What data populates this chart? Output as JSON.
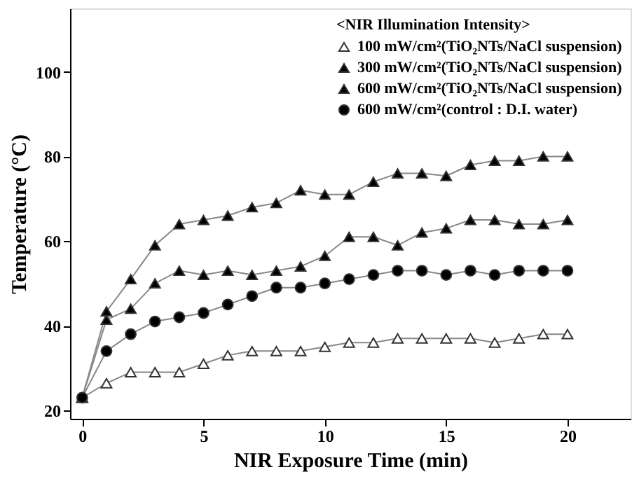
{
  "chart_data": {
    "type": "line",
    "xlabel": "NIR Exposure Time (min)",
    "ylabel": "Temperature (°C)",
    "legend_title": "<NIR Illumination Intensity>",
    "x": [
      0,
      1,
      2,
      3,
      4,
      5,
      6,
      7,
      8,
      9,
      10,
      11,
      12,
      13,
      14,
      15,
      16,
      17,
      18,
      19,
      20
    ],
    "xlim": [
      -0.5,
      22.6
    ],
    "xticks": [
      0,
      5,
      10,
      15,
      20
    ],
    "ylim": [
      18,
      115
    ],
    "yticks": [
      20,
      40,
      60,
      80,
      100
    ],
    "grid": false,
    "legend": "top right",
    "marker": "triangle",
    "series": [
      {
        "name": "100 mW/cm²(TiO₂NTs/NaCl suspension)",
        "color": "#ffffff",
        "values": [
          23,
          26.4,
          29,
          29,
          29,
          31,
          33,
          34,
          34,
          34,
          35,
          36,
          36,
          37,
          37,
          37,
          37,
          36,
          37,
          38,
          38
        ]
      },
      {
        "name": "300 mW/cm²(TiO₂NTs/NaCl suspension)",
        "color": "#000000",
        "values": [
          23,
          41.4,
          44,
          50,
          53,
          52,
          53,
          52,
          53,
          54,
          56.5,
          61,
          61,
          59,
          62,
          63,
          65,
          65,
          64,
          64,
          65
        ]
      },
      {
        "name": "600 mW/cm²(TiO₂NTs/NaCl suspension)",
        "color": "#000000",
        "values": [
          23,
          43.4,
          51,
          59,
          64,
          65,
          66,
          68,
          69,
          72,
          71,
          71,
          74,
          76,
          76,
          75.4,
          78,
          79,
          79,
          80,
          80
        ]
      },
      {
        "name": "600 mW/cm²(control : D.I. water)",
        "color": "#000000",
        "marker": "circle",
        "values": [
          23,
          34,
          38,
          41,
          42,
          43,
          45,
          47,
          49,
          49,
          50,
          51,
          52,
          53,
          53,
          52,
          53,
          52,
          53,
          53,
          53
        ]
      }
    ]
  }
}
